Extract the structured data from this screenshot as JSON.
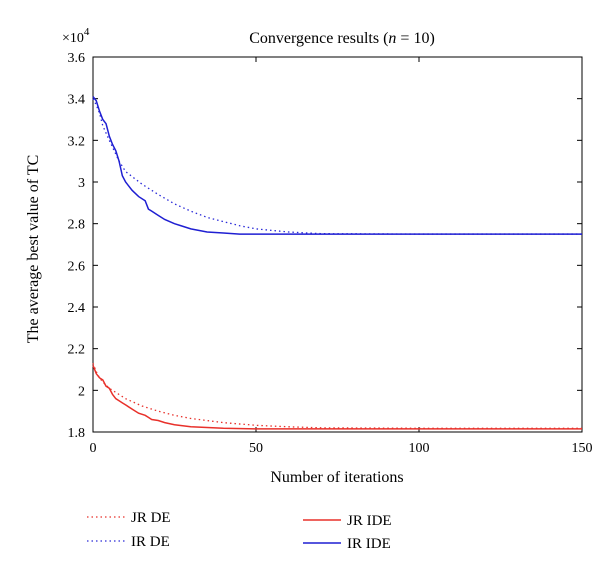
{
  "chart_data": {
    "type": "line",
    "title_prefix": "Convergence results (",
    "title_var": "n",
    "title_suffix": " = 10)",
    "xlabel": "Number of iterations",
    "ylabel": "The average best value of TC",
    "y_multiplier": "×10",
    "y_exponent": "4",
    "xlim": [
      0,
      150
    ],
    "ylim": [
      1.8,
      3.6
    ],
    "x_ticks": [
      0,
      50,
      100,
      150
    ],
    "x_tick_labels": [
      "0",
      "50",
      "100",
      "150"
    ],
    "y_ticks": [
      1.8,
      2.0,
      2.2,
      2.4,
      2.6,
      2.8,
      3.0,
      3.2,
      3.4,
      3.6
    ],
    "y_tick_labels": [
      "1.8",
      "2",
      "2.2",
      "2.4",
      "2.6",
      "2.8",
      "3",
      "3.2",
      "3.4",
      "3.6"
    ],
    "grid": false,
    "series": [
      {
        "name": "JR DE",
        "color": "#e8302a",
        "style": "dotted",
        "x": [
          0,
          1,
          2,
          3,
          5,
          8,
          10,
          15,
          20,
          25,
          30,
          40,
          50,
          60,
          70,
          100,
          150
        ],
        "y": [
          2.13,
          2.09,
          2.06,
          2.04,
          2.01,
          1.98,
          1.96,
          1.925,
          1.9,
          1.88,
          1.865,
          1.845,
          1.832,
          1.825,
          1.82,
          1.818,
          1.818
        ]
      },
      {
        "name": "IR DE",
        "color": "#2a2ad8",
        "style": "dotted",
        "x": [
          0,
          1,
          2,
          3,
          5,
          8,
          10,
          15,
          20,
          25,
          30,
          35,
          40,
          45,
          50,
          60,
          70,
          100,
          150
        ],
        "y": [
          3.4,
          3.37,
          3.33,
          3.27,
          3.2,
          3.1,
          3.05,
          2.99,
          2.94,
          2.895,
          2.86,
          2.83,
          2.81,
          2.79,
          2.775,
          2.76,
          2.752,
          2.75,
          2.75
        ]
      },
      {
        "name": "JR IDE",
        "color": "#e8302a",
        "style": "solid",
        "x": [
          0,
          1,
          2,
          3,
          4,
          5,
          6,
          7,
          8,
          9,
          10,
          12,
          14,
          16,
          17,
          18,
          20,
          22,
          25,
          30,
          40,
          50,
          150
        ],
        "y": [
          2.12,
          2.08,
          2.06,
          2.05,
          2.02,
          2.01,
          1.98,
          1.96,
          1.95,
          1.94,
          1.93,
          1.91,
          1.89,
          1.88,
          1.87,
          1.86,
          1.855,
          1.845,
          1.835,
          1.825,
          1.818,
          1.815,
          1.815
        ]
      },
      {
        "name": "IR IDE",
        "color": "#1f1fd2",
        "style": "solid",
        "x": [
          0,
          1,
          2,
          3,
          4,
          5,
          6,
          7,
          8,
          9,
          10,
          12,
          14,
          16,
          17,
          18,
          20,
          22,
          25,
          27,
          30,
          35,
          40,
          45,
          50,
          150
        ],
        "y": [
          3.41,
          3.39,
          3.34,
          3.3,
          3.28,
          3.22,
          3.18,
          3.15,
          3.1,
          3.03,
          3.0,
          2.96,
          2.93,
          2.91,
          2.87,
          2.86,
          2.84,
          2.82,
          2.8,
          2.79,
          2.775,
          2.76,
          2.755,
          2.75,
          2.75,
          2.75
        ]
      }
    ],
    "legend_placement": "bottom",
    "legend": [
      {
        "label": "JR DE",
        "color": "#e8302a",
        "style": "dotted"
      },
      {
        "label": "IR DE",
        "color": "#2a2ad8",
        "style": "dotted"
      },
      {
        "label": "JR IDE",
        "color": "#e8302a",
        "style": "solid"
      },
      {
        "label": "IR IDE",
        "color": "#1f1fd2",
        "style": "solid"
      }
    ]
  }
}
